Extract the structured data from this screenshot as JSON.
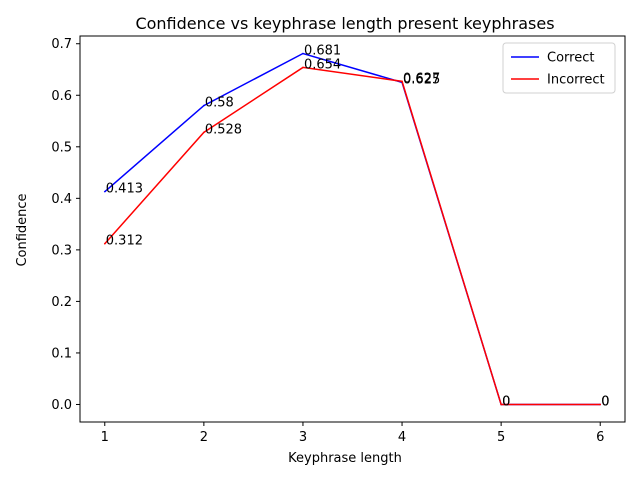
{
  "chart_data": {
    "type": "line",
    "title": "Confidence vs keyphrase length present keyphrases",
    "xlabel": "Keyphrase length",
    "ylabel": "Confidence",
    "x": [
      1,
      2,
      3,
      4,
      5,
      6
    ],
    "xticks": [
      "1",
      "2",
      "3",
      "4",
      "5",
      "6"
    ],
    "yticks": [
      "0.0",
      "0.1",
      "0.2",
      "0.3",
      "0.4",
      "0.5",
      "0.6",
      "0.7"
    ],
    "xlim": [
      0.75,
      6.25
    ],
    "ylim": [
      -0.034,
      0.715
    ],
    "series": [
      {
        "name": "Correct",
        "color": "#0000ff",
        "values": [
          0.413,
          0.58,
          0.681,
          0.625,
          0,
          0
        ],
        "labels": [
          "0.413",
          "0.58",
          "0.681",
          "0.625",
          "0",
          "0"
        ]
      },
      {
        "name": "Incorrect",
        "color": "#ff0000",
        "values": [
          0.312,
          0.528,
          0.654,
          0.627,
          0,
          0
        ],
        "labels": [
          "0.312",
          "0.528",
          "0.654",
          "0.627",
          "0",
          "0"
        ]
      }
    ],
    "grid": false,
    "legend": "top-right"
  }
}
